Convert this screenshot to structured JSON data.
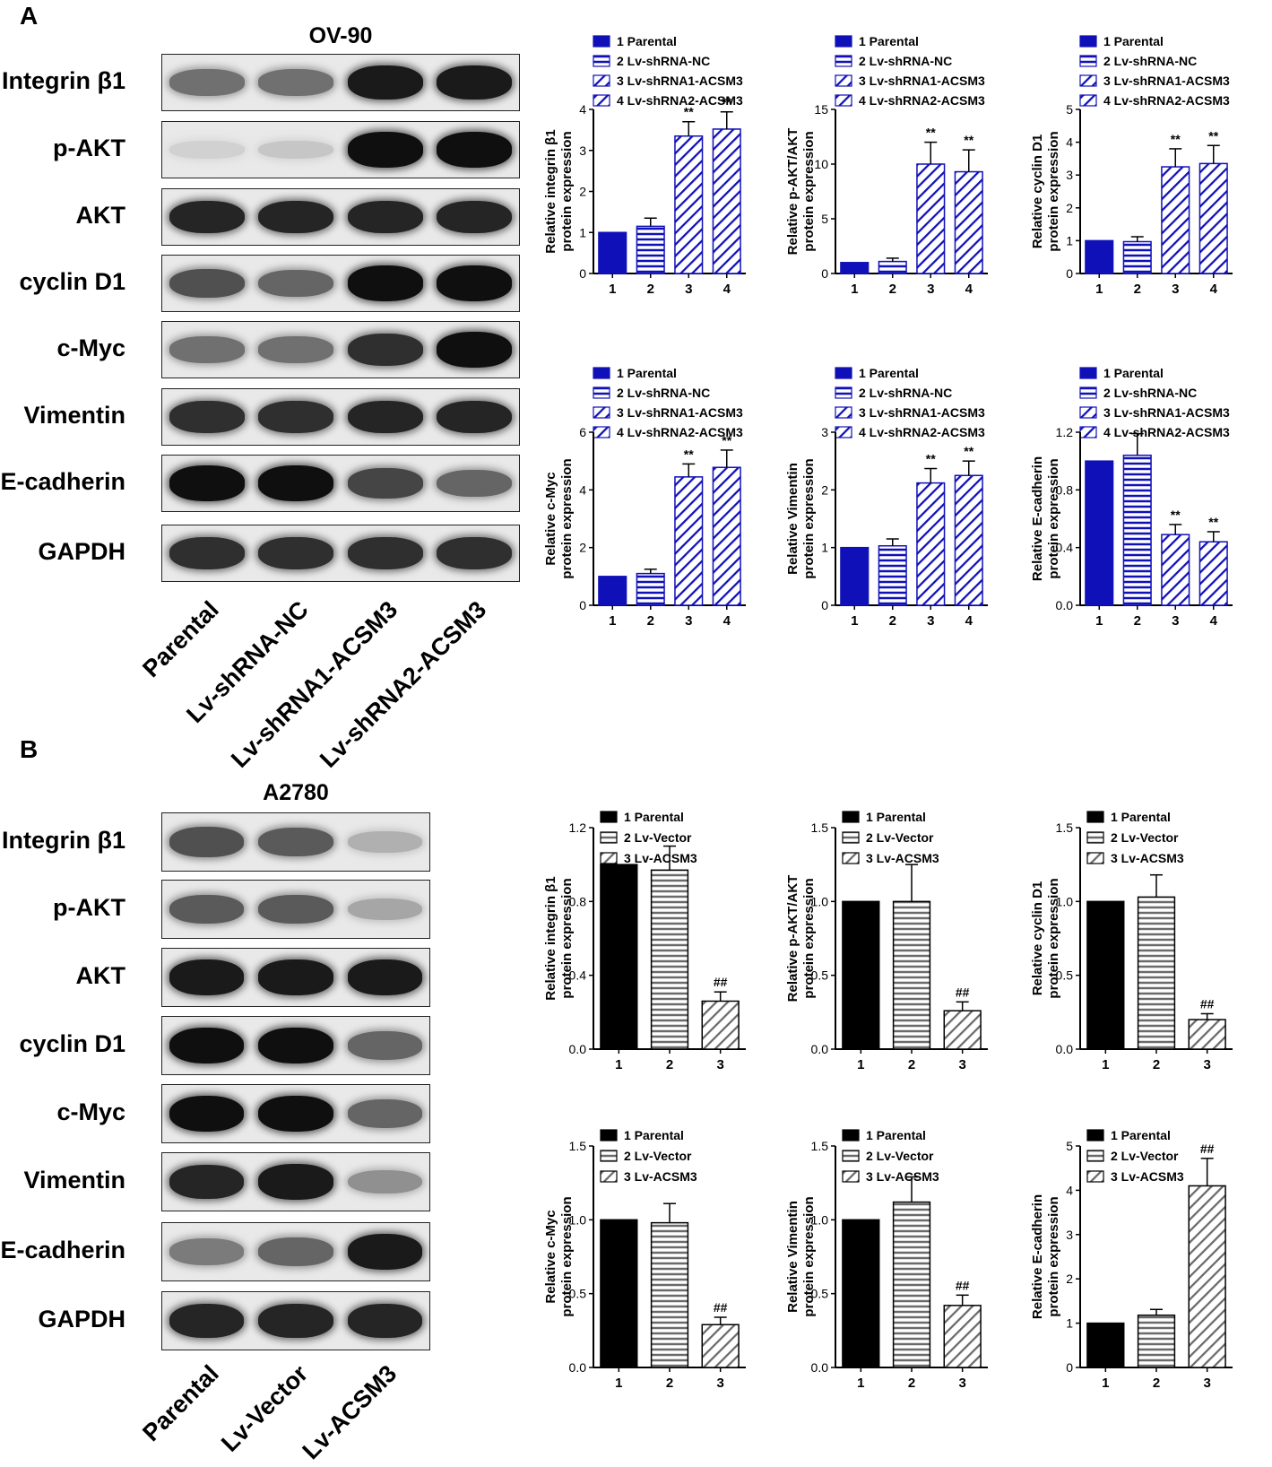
{
  "panels": {
    "A": {
      "letter": "A",
      "blot_title": "OV-90",
      "row_labels": [
        "Integrin β1",
        "p-AKT",
        "AKT",
        "cyclin D1",
        "c-Myc",
        "Vimentin",
        "E-cadherin",
        "GAPDH"
      ],
      "lane_labels": [
        "Parental",
        "Lv-shRNA-NC",
        "Lv-shRNA1-ACSM3",
        "Lv-shRNA2-ACSM3"
      ]
    },
    "B": {
      "letter": "B",
      "blot_title": "A2780",
      "row_labels": [
        "Integrin β1",
        "p-AKT",
        "AKT",
        "cyclin D1",
        "c-Myc",
        "Vimentin",
        "E-cadherin",
        "GAPDH"
      ],
      "lane_labels": [
        "Parental",
        "Lv-Vector",
        "Lv-ACSM3"
      ]
    }
  },
  "legend_A": [
    "1 Parental",
    "2 Lv-shRNA-NC",
    "3 Lv-shRNA1-ACSM3",
    "4 Lv-shRNA2-ACSM3"
  ],
  "legend_B": [
    "1 Parental",
    "2 Lv-Vector",
    "3 Lv-ACSM3"
  ],
  "colors": {
    "blue": "#1010b8",
    "black": "#000000",
    "gray": "#7a7a7a"
  },
  "chart_data": [
    {
      "id": "A1",
      "type": "bar",
      "group": "A",
      "ylabel": [
        "Relative integrin β1",
        "protein expression"
      ],
      "categories": [
        "1",
        "2",
        "3",
        "4"
      ],
      "values": [
        1.0,
        1.15,
        3.35,
        3.52
      ],
      "errors": [
        0,
        0.2,
        0.35,
        0.42
      ],
      "ylim": [
        0,
        4
      ],
      "ticks": [
        "0",
        "1",
        "2",
        "3",
        "4"
      ],
      "annotations": [
        "",
        "",
        "**",
        "**"
      ]
    },
    {
      "id": "A2",
      "type": "bar",
      "group": "A",
      "ylabel": [
        "Relative p-AKT/AKT",
        "protein expression"
      ],
      "categories": [
        "1",
        "2",
        "3",
        "4"
      ],
      "values": [
        1.0,
        1.1,
        10.0,
        9.3
      ],
      "errors": [
        0,
        0.3,
        2.0,
        2.0
      ],
      "ylim": [
        0,
        15
      ],
      "ticks": [
        "0",
        "5",
        "10",
        "15"
      ],
      "annotations": [
        "",
        "",
        "**",
        "**"
      ]
    },
    {
      "id": "A3",
      "type": "bar",
      "group": "A",
      "ylabel": [
        "Relative cyclin D1",
        "protein expression"
      ],
      "categories": [
        "1",
        "2",
        "3",
        "4"
      ],
      "values": [
        1.0,
        0.97,
        3.25,
        3.35
      ],
      "errors": [
        0,
        0.15,
        0.55,
        0.55
      ],
      "ylim": [
        0,
        5
      ],
      "ticks": [
        "0",
        "1",
        "2",
        "3",
        "4",
        "5"
      ],
      "annotations": [
        "",
        "",
        "**",
        "**"
      ]
    },
    {
      "id": "A4",
      "type": "bar",
      "group": "A",
      "ylabel": [
        "Relative c-Myc",
        "protein expression"
      ],
      "categories": [
        "1",
        "2",
        "3",
        "4"
      ],
      "values": [
        1.0,
        1.1,
        4.45,
        4.78
      ],
      "errors": [
        0,
        0.15,
        0.45,
        0.6
      ],
      "ylim": [
        0,
        6
      ],
      "ticks": [
        "0",
        "2",
        "4",
        "6"
      ],
      "annotations": [
        "",
        "",
        "**",
        "**"
      ]
    },
    {
      "id": "A5",
      "type": "bar",
      "group": "A",
      "ylabel": [
        "Relative Vimentin",
        "protein expression"
      ],
      "categories": [
        "1",
        "2",
        "3",
        "4"
      ],
      "values": [
        1.0,
        1.03,
        2.12,
        2.25
      ],
      "errors": [
        0,
        0.12,
        0.25,
        0.25
      ],
      "ylim": [
        0,
        3
      ],
      "ticks": [
        "0",
        "1",
        "2",
        "3"
      ],
      "annotations": [
        "",
        "",
        "**",
        "**"
      ]
    },
    {
      "id": "A6",
      "type": "bar",
      "group": "A",
      "ylabel": [
        "Relative E-cadherin",
        "protein expression"
      ],
      "categories": [
        "1",
        "2",
        "3",
        "4"
      ],
      "values": [
        1.0,
        1.04,
        0.49,
        0.44
      ],
      "errors": [
        0,
        0.15,
        0.07,
        0.07
      ],
      "ylim": [
        0,
        1.2
      ],
      "ticks": [
        "0.0",
        "0.4",
        "0.8",
        "1.2"
      ],
      "annotations": [
        "",
        "",
        "**",
        "**"
      ]
    },
    {
      "id": "B1",
      "type": "bar",
      "group": "B",
      "ylabel": [
        "Relative integrin β1",
        "protein expression"
      ],
      "categories": [
        "1",
        "2",
        "3"
      ],
      "values": [
        1.0,
        0.97,
        0.26
      ],
      "errors": [
        0,
        0.13,
        0.05
      ],
      "ylim": [
        0,
        1.2
      ],
      "ticks": [
        "0.0",
        "0.4",
        "0.8",
        "1.2"
      ],
      "annotations": [
        "",
        "",
        "##"
      ]
    },
    {
      "id": "B2",
      "type": "bar",
      "group": "B",
      "ylabel": [
        "Relative p-AKT/AKT",
        "protein expression"
      ],
      "categories": [
        "1",
        "2",
        "3"
      ],
      "values": [
        1.0,
        1.0,
        0.26
      ],
      "errors": [
        0,
        0.25,
        0.06
      ],
      "ylim": [
        0,
        1.5
      ],
      "ticks": [
        "0.0",
        "0.5",
        "1.0",
        "1.5"
      ],
      "annotations": [
        "",
        "",
        "##"
      ]
    },
    {
      "id": "B3",
      "type": "bar",
      "group": "B",
      "ylabel": [
        "Relative cyclin D1",
        "protein expression"
      ],
      "categories": [
        "1",
        "2",
        "3"
      ],
      "values": [
        1.0,
        1.03,
        0.2
      ],
      "errors": [
        0,
        0.15,
        0.04
      ],
      "ylim": [
        0,
        1.5
      ],
      "ticks": [
        "0.0",
        "0.5",
        "1.0",
        "1.5"
      ],
      "annotations": [
        "",
        "",
        "##"
      ]
    },
    {
      "id": "B4",
      "type": "bar",
      "group": "B",
      "ylabel": [
        "Relative c-Myc",
        "protein expression"
      ],
      "categories": [
        "1",
        "2",
        "3"
      ],
      "values": [
        1.0,
        0.98,
        0.29
      ],
      "errors": [
        0,
        0.13,
        0.05
      ],
      "ylim": [
        0,
        1.5
      ],
      "ticks": [
        "0.0",
        "0.5",
        "1.0",
        "1.5"
      ],
      "annotations": [
        "",
        "",
        "##"
      ]
    },
    {
      "id": "B5",
      "type": "bar",
      "group": "B",
      "ylabel": [
        "Relative Vimentin",
        "protein expression"
      ],
      "categories": [
        "1",
        "2",
        "3"
      ],
      "values": [
        1.0,
        1.12,
        0.42
      ],
      "errors": [
        0,
        0.17,
        0.07
      ],
      "ylim": [
        0,
        1.5
      ],
      "ticks": [
        "0.0",
        "0.5",
        "1.0",
        "1.5"
      ],
      "annotations": [
        "",
        "",
        "##"
      ]
    },
    {
      "id": "B6",
      "type": "bar",
      "group": "B",
      "ylabel": [
        "Relative E-cadherin",
        "protein expression"
      ],
      "categories": [
        "1",
        "2",
        "3"
      ],
      "values": [
        1.0,
        1.18,
        4.1
      ],
      "errors": [
        0,
        0.13,
        0.62
      ],
      "ylim": [
        0,
        5
      ],
      "ticks": [
        "0",
        "1",
        "2",
        "3",
        "4",
        "5"
      ],
      "annotations": [
        "",
        "",
        "##"
      ]
    }
  ]
}
